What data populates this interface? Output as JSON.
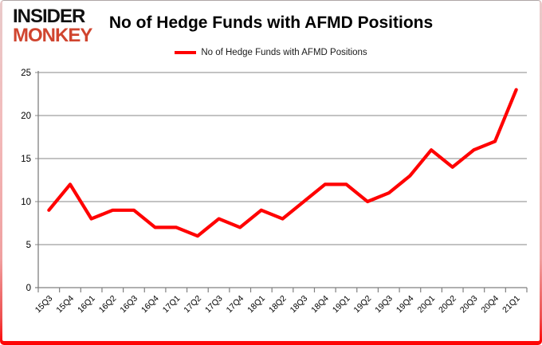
{
  "branding": {
    "logo_line1": "INSIDER",
    "logo_line2": "MONKEY",
    "logo_color_primary": "#111111",
    "logo_color_accent": "#d0452f"
  },
  "header": {
    "title": "No of Hedge Funds with AFMD Positions"
  },
  "legend": {
    "label": "No of Hedge Funds with AFMD Positions",
    "swatch_color": "#ff0000"
  },
  "chart_data": {
    "type": "line",
    "title": "No of Hedge Funds with AFMD Positions",
    "categories": [
      "15Q3",
      "15Q4",
      "16Q1",
      "16Q2",
      "16Q3",
      "16Q4",
      "17Q1",
      "17Q2",
      "17Q3",
      "17Q4",
      "18Q1",
      "18Q2",
      "18Q3",
      "18Q4",
      "19Q1",
      "19Q2",
      "19Q3",
      "19Q4",
      "20Q1",
      "20Q2",
      "20Q3",
      "20Q4",
      "21Q1"
    ],
    "series": [
      {
        "name": "No of Hedge Funds with AFMD Positions",
        "color": "#ff0000",
        "values": [
          9,
          12,
          8,
          9,
          9,
          7,
          7,
          6,
          8,
          7,
          9,
          8,
          10,
          12,
          12,
          10,
          11,
          13,
          16,
          14,
          16,
          17,
          23
        ]
      }
    ],
    "xlabel": "",
    "ylabel": "",
    "ylim": [
      0,
      25
    ],
    "yticks": [
      0,
      5,
      10,
      15,
      20,
      25
    ],
    "grid": "horizontal",
    "legend_position": "top-center"
  },
  "colors": {
    "axis": "#808080",
    "gridline": "#9f9f9f",
    "tick_label": "#000000",
    "border_bottom": "#ff0000",
    "border_top": "#9a9a9a",
    "border_side": "#f2bcbc"
  }
}
